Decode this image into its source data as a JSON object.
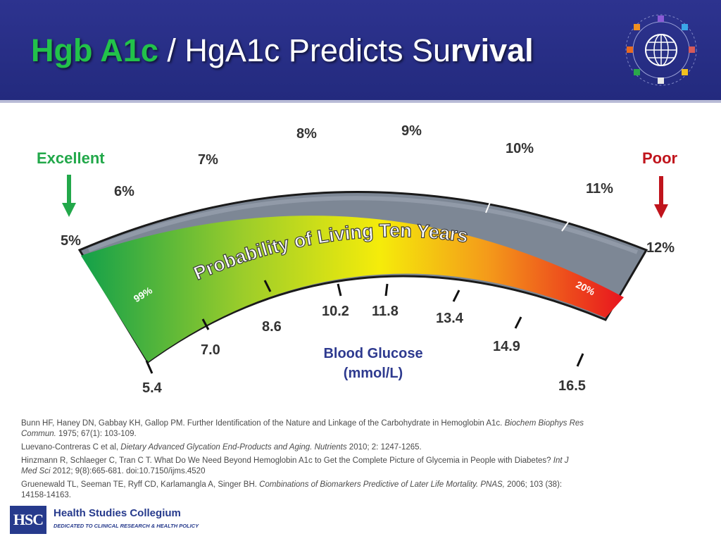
{
  "title": {
    "part1": "Hgb A1c",
    "part2": " / HgA1c Predicts Su",
    "part3": "rvival"
  },
  "diagram": {
    "excellent_label": "Excellent",
    "poor_label": "Poor",
    "arc_caption": "Probability of Living Ten Years",
    "start_pct": "99%",
    "end_pct": "20%",
    "a1c_labels": [
      "5%",
      "6%",
      "7%",
      "8%",
      "9%",
      "10%",
      "11%",
      "12%"
    ],
    "glucose_labels": [
      "5.4",
      "7.0",
      "8.6",
      "10.2",
      "11.8",
      "13.4",
      "14.9",
      "16.5"
    ],
    "glucose_title_line1": "Blood Glucose",
    "glucose_title_line2": "(mmol/L)",
    "colors": {
      "green": "#1aa64a",
      "yellow": "#f5ec0a",
      "orange": "#f49a1a",
      "red": "#e8141e",
      "excellent": "#22a84a",
      "poor": "#c0141c",
      "glucose_title": "#2e3a8f"
    }
  },
  "references": [
    {
      "text": "Bunn HF, Haney DN, Gabbay KH, Gallop PM. Further Identification  of the Nature and Linkage of the Carbohydrate in Hemoglobin A1c.",
      "italic": "Biochem Biophys Res Commun.",
      "tail": " 1975; 67(1): 103-109."
    },
    {
      "text": "Luevano-Contreras C et al, ",
      "italic": "Dietary Advanced Glycation  End-Products and Aging. Nutrients",
      "tail": " 2010; 2: 1247-1265."
    },
    {
      "text": "Hinzmann R, Schlaeger C,  Tran C T. What Do We Need Beyond Hemoglobin A1c to Get the Complete  Picture of Glycemia in People with Diabetes? ",
      "italic": "Int J Med Sci",
      "tail": " 2012; 9(8):665-681. doi:10.7150/ijms.4520"
    },
    {
      "text": "Gruenewald TL,  Seeman TE, Ryff CD, Karlamangla A,  Singer BH. ",
      "italic": "Combinations of Biomarkers Predictive  of Later Life Mortality. PNAS,",
      "tail": " 2006; 103 (38): 14158-14163."
    }
  ],
  "logo": {
    "mark": "HSC",
    "name": "Health Studies Collegium",
    "tagline": "DEDICATED TO CLINICAL RESEARCH & HEALTH POLICY"
  }
}
